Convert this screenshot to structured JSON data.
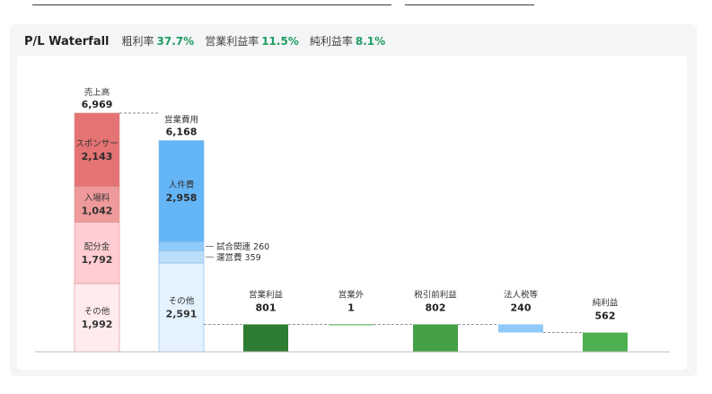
{
  "header": {
    "title": "P/L Waterfall",
    "metrics": [
      {
        "label": "粗利率",
        "value": "37.7%"
      },
      {
        "label": "営業利益率",
        "value": "11.5%"
      },
      {
        "label": "純利益率",
        "value": "8.1%"
      }
    ]
  },
  "chart_data": {
    "type": "bar",
    "title": "P/L Waterfall",
    "ylim": [
      0,
      6969
    ],
    "columns": [
      {
        "kind": "stack",
        "name": "売上高",
        "total_label": "6,969",
        "total": 6969,
        "segments": [
          {
            "name": "スポンサー",
            "label": "2,143",
            "value": 2143,
            "color": "#e57373"
          },
          {
            "name": "入場料",
            "label": "1,042",
            "value": 1042,
            "color": "#ef9a9a"
          },
          {
            "name": "配分金",
            "label": "1,792",
            "value": 1792,
            "color": "#ffcdd2"
          },
          {
            "name": "その他",
            "label": "1,992",
            "value": 1992,
            "color": "#ffebee"
          }
        ]
      },
      {
        "kind": "stack",
        "name": "営業費用",
        "total_label": "6,168",
        "total": 6168,
        "segments": [
          {
            "name": "人件費",
            "label": "2,958",
            "value": 2958,
            "color": "#64b5f6"
          },
          {
            "name": "試合関連",
            "label": "260",
            "value": 260,
            "color": "#90caf9",
            "side": true
          },
          {
            "name": "運営費",
            "label": "359",
            "value": 359,
            "color": "#bbdefb",
            "side": true
          },
          {
            "name": "その他",
            "label": "2,591",
            "value": 2591,
            "color": "#e3f2fd"
          }
        ]
      },
      {
        "kind": "bar",
        "name": "営業利益",
        "label": "801",
        "value": 801,
        "base": 0,
        "color": "#2e7d32"
      },
      {
        "kind": "bar",
        "name": "営業外",
        "label": "1",
        "value": 1,
        "base": 801,
        "color": "#43a047"
      },
      {
        "kind": "bar",
        "name": "税引前利益",
        "label": "802",
        "value": 802,
        "base": 0,
        "color": "#43a047"
      },
      {
        "kind": "bar",
        "name": "法人税等",
        "label": "240",
        "value": 240,
        "base": 562,
        "color": "#90caf9"
      },
      {
        "kind": "bar",
        "name": "純利益",
        "label": "562",
        "value": 562,
        "base": 0,
        "color": "#4caf50"
      }
    ]
  }
}
